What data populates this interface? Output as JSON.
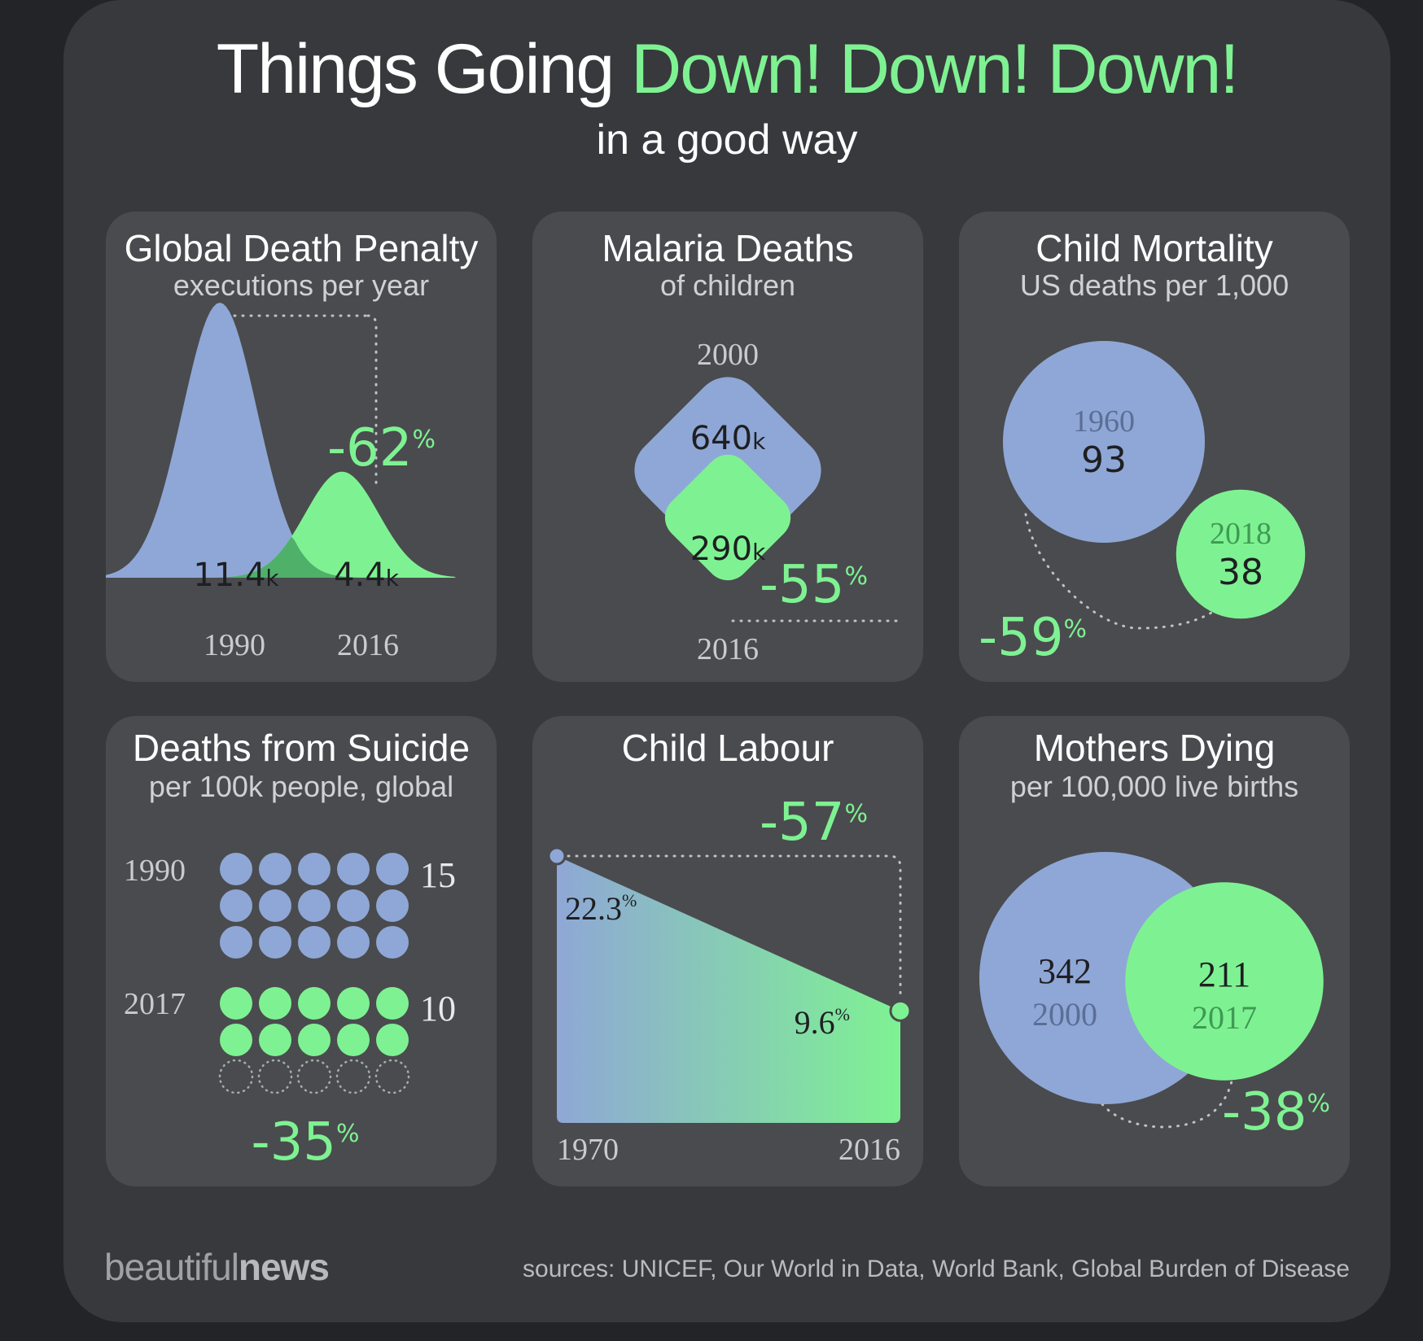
{
  "header": {
    "title_main": "Things Going ",
    "title_accent": "Down! Down! Down!",
    "subtitle": "in a good way"
  },
  "colors": {
    "blue": "#8fa7d6",
    "green": "#7ef292",
    "dark_text": "#1e1f22",
    "year_text": "#c9cbce",
    "panel": "#4a4b4e"
  },
  "footer": {
    "brand_light": "beautiful",
    "brand_bold": "news",
    "sources": "sources: UNICEF, Our World in Data, World Bank, Global Burden of Disease"
  },
  "chart_data": [
    {
      "type": "area",
      "title": "Global Death Penalty",
      "subtitle": "executions per year",
      "categories": [
        "1990",
        "2016"
      ],
      "values": [
        11.4,
        4.4
      ],
      "value_labels": [
        "11.4",
        "4.4"
      ],
      "unit": "k",
      "change": "-62",
      "change_unit": "%"
    },
    {
      "type": "area",
      "title": "Malaria Deaths",
      "subtitle": "of children",
      "categories": [
        "2000",
        "2016"
      ],
      "values": [
        640,
        290
      ],
      "value_labels": [
        "640",
        "290"
      ],
      "unit": "k",
      "change": "-55",
      "change_unit": "%"
    },
    {
      "type": "area",
      "title": "Child Mortality",
      "subtitle": "US deaths per 1,000",
      "categories": [
        "1960",
        "2018"
      ],
      "values": [
        93,
        38
      ],
      "value_labels": [
        "93",
        "38"
      ],
      "change": "-59",
      "change_unit": "%"
    },
    {
      "type": "scatter",
      "title": "Deaths from Suicide",
      "subtitle": "per 100k people, global",
      "categories": [
        "1990",
        "2017"
      ],
      "values": [
        15,
        10
      ],
      "value_labels": [
        "15",
        "10"
      ],
      "change": "-35",
      "change_unit": "%"
    },
    {
      "type": "area",
      "title": "Child Labour",
      "categories": [
        "1970",
        "2016"
      ],
      "values": [
        22.3,
        9.6
      ],
      "value_labels": [
        "22.3",
        "9.6"
      ],
      "unit": "%",
      "change": "-57",
      "change_unit": "%"
    },
    {
      "type": "area",
      "title": "Mothers Dying",
      "subtitle": "per 100,000 live births",
      "categories": [
        "2000",
        "2017"
      ],
      "values": [
        342,
        211
      ],
      "value_labels": [
        "342",
        "211"
      ],
      "change": "-38",
      "change_unit": "%"
    }
  ]
}
